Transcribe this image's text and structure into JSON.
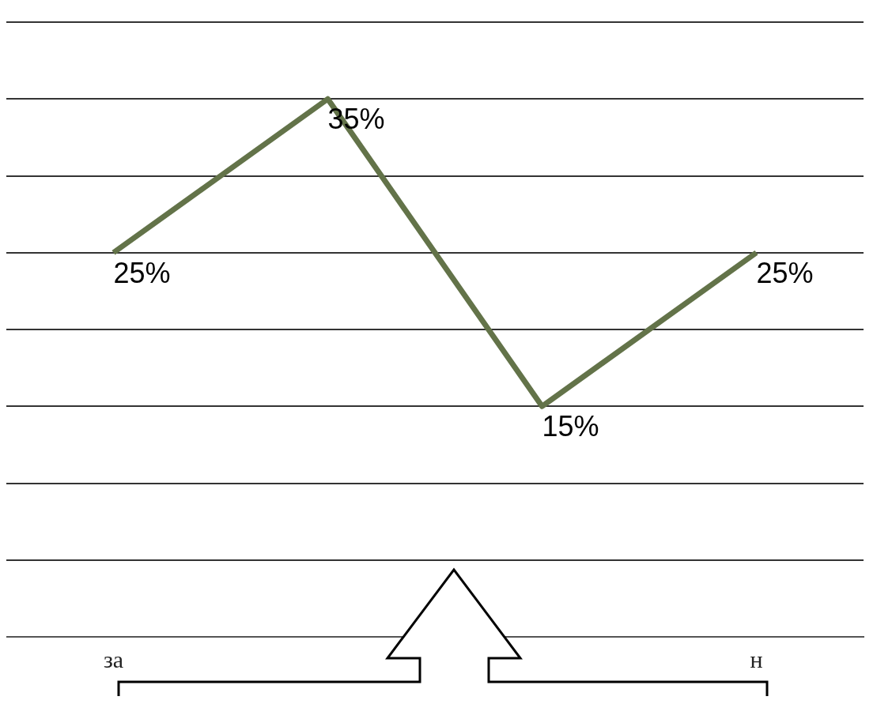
{
  "chart_data": {
    "type": "line",
    "categories": [
      "за",
      null,
      null,
      "н"
    ],
    "series": [
      {
        "color": "#637349",
        "values": [
          25,
          35,
          15,
          25
        ],
        "value_labels": [
          "25%",
          "35%",
          "15%",
          "25%"
        ]
      }
    ],
    "grid": "y",
    "tick_labels": "x",
    "legend": false,
    "marker": "none",
    "line_style": "solid"
  }
}
